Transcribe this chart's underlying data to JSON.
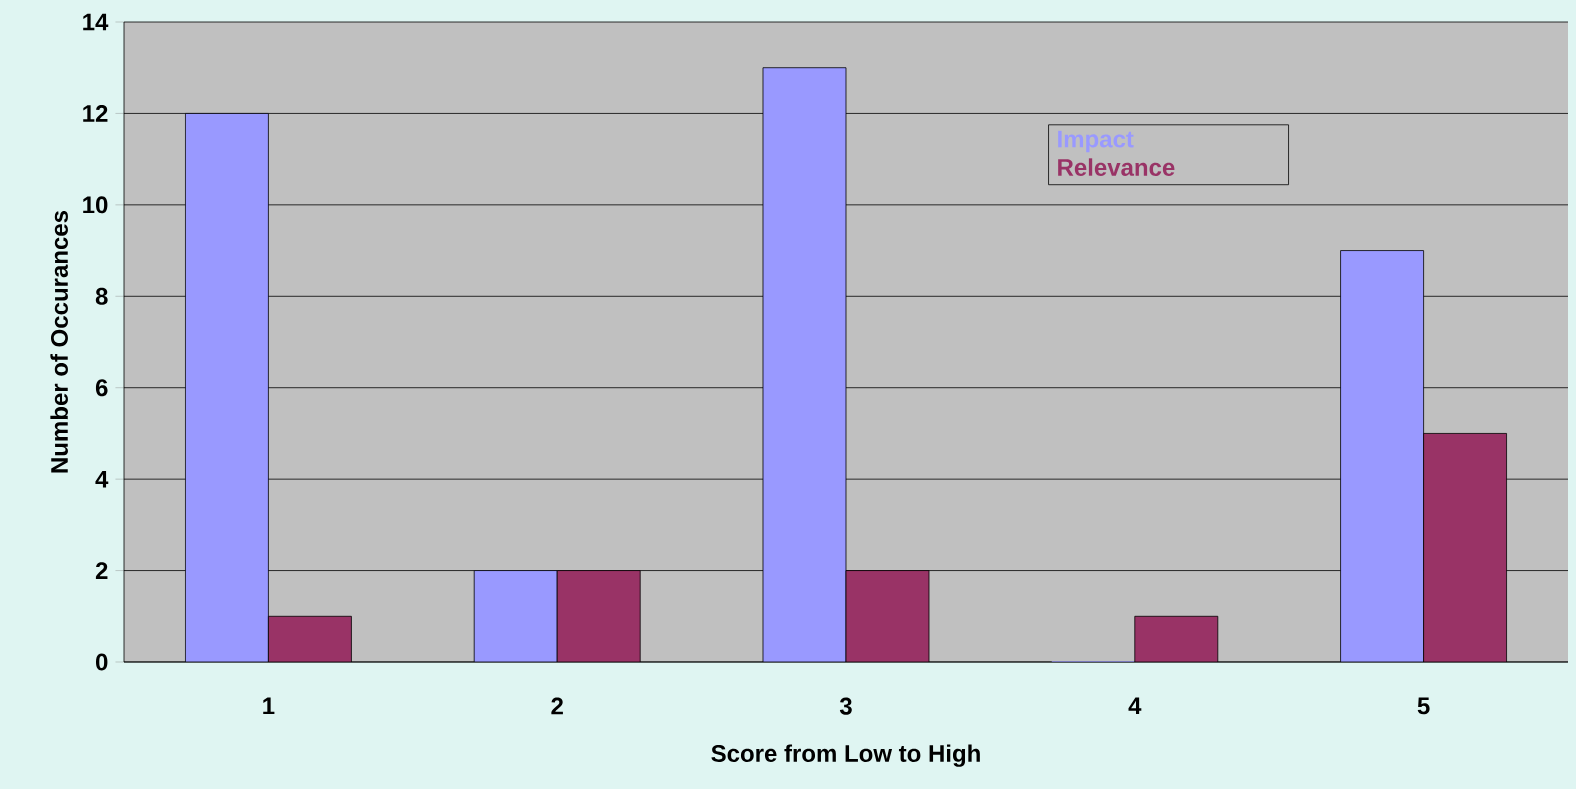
{
  "chart_data": {
    "type": "bar",
    "xlabel": "Score from Low to High",
    "ylabel": "Number of Occurances",
    "categories": [
      "1",
      "2",
      "3",
      "4",
      "5"
    ],
    "series": [
      {
        "name": "Impact",
        "color": "#9999ff",
        "values": [
          12,
          2,
          13,
          0,
          9
        ]
      },
      {
        "name": "Relevance",
        "color": "#993366",
        "values": [
          1,
          2,
          2,
          1,
          5
        ]
      }
    ],
    "ylim": [
      0,
      14
    ],
    "yticks": [
      0,
      2,
      4,
      6,
      8,
      10,
      12,
      14
    ],
    "grid": "y",
    "legend": "top right"
  }
}
